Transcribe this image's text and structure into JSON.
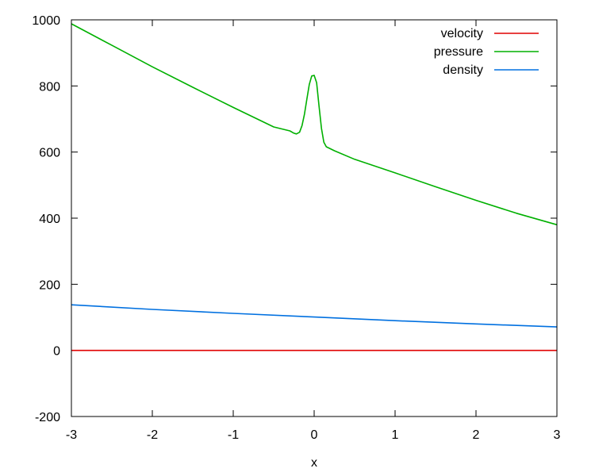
{
  "chart_data": {
    "type": "line",
    "title": "",
    "xlabel": "x",
    "ylabel": "",
    "xlim": [
      -3,
      3
    ],
    "ylim": [
      -200,
      1000
    ],
    "xticks": [
      -3,
      -2,
      -1,
      0,
      1,
      2,
      3
    ],
    "yticks": [
      -200,
      0,
      200,
      400,
      600,
      800,
      1000
    ],
    "xtick_labels": [
      "-3",
      "-2",
      "-1",
      "0",
      "1",
      "2",
      "3"
    ],
    "ytick_labels": [
      "-200",
      "0",
      "200",
      "400",
      "600",
      "800",
      "1000"
    ],
    "grid": false,
    "legend_position": "top-right",
    "series": [
      {
        "name": "velocity",
        "color": "#e00000",
        "x": [
          -3,
          3
        ],
        "y": [
          0,
          0
        ]
      },
      {
        "name": "pressure",
        "color": "#00b000",
        "x": [
          -3,
          -2.5,
          -2,
          -1.5,
          -1,
          -0.5,
          -0.3,
          -0.25,
          -0.22,
          -0.18,
          -0.15,
          -0.12,
          -0.09,
          -0.06,
          -0.03,
          0,
          0.03,
          0.06,
          0.09,
          0.12,
          0.15,
          0.2,
          0.25,
          0.5,
          1,
          1.5,
          2,
          2.5,
          3
        ],
        "y": [
          988,
          923,
          858,
          796,
          735,
          676,
          664,
          657,
          655,
          660,
          680,
          715,
          760,
          805,
          830,
          832,
          810,
          740,
          672,
          630,
          616,
          610,
          604,
          578,
          537,
          495,
          454,
          415,
          380
        ]
      },
      {
        "name": "density",
        "color": "#0070e0",
        "x": [
          -3,
          -2,
          -1,
          0,
          1,
          2,
          3
        ],
        "y": [
          138,
          124,
          112,
          101,
          90,
          80,
          71
        ]
      }
    ]
  }
}
